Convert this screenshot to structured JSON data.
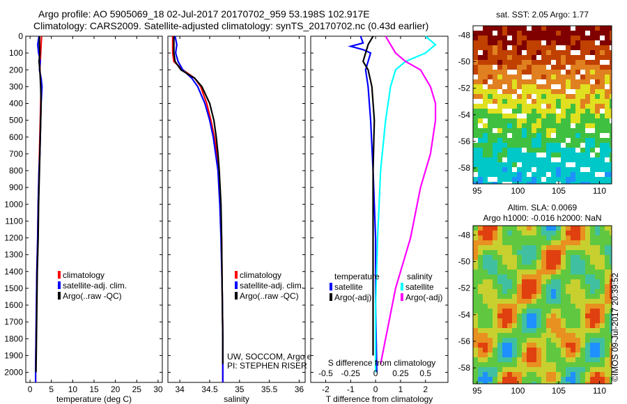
{
  "header": {
    "line1": "Argo profile: AO 5905069_18 02-Jul-2017 20170702_959 53.198S 102.917E",
    "line2": "Climatology: CARS2009. Satellite-adjusted climatology: synTS_20170702.nc (0.43d earlier)"
  },
  "colors": {
    "climatology": "#ff0000",
    "satellite": "#0000ff",
    "argo": "#000000",
    "salinity_satellite": "#00ffff",
    "salinity_argo": "#ff00ff"
  },
  "depth_axis": {
    "ticks": [
      "0",
      "100",
      "200",
      "300",
      "400",
      "500",
      "600",
      "700",
      "800",
      "900",
      "1000",
      "1100",
      "1200",
      "1300",
      "1400",
      "1500",
      "1600",
      "1700",
      "1800",
      "1900",
      "2000"
    ],
    "ylim": [
      0,
      2060
    ]
  },
  "chart_data": [
    {
      "type": "line",
      "panel": "temperature",
      "xlabel": "temperature (deg C)",
      "xlim": [
        -1,
        31
      ],
      "xticks": [
        "0",
        "5",
        "10",
        "15",
        "20",
        "25",
        "30"
      ],
      "xtick_values": [
        0,
        5,
        10,
        15,
        20,
        25,
        30
      ],
      "legend": [
        "climatology",
        "satellite-adj. clim.",
        "Argo(..raw -QC)"
      ],
      "series": [
        {
          "name": "climatology",
          "color": "#ff0000",
          "points": [
            [
              2.7,
              0
            ],
            [
              2.6,
              50
            ],
            [
              2.5,
              100
            ],
            [
              2.4,
              150
            ],
            [
              2.3,
              200
            ],
            [
              2.5,
              250
            ],
            [
              2.6,
              300
            ],
            [
              2.5,
              400
            ],
            [
              2.4,
              500
            ],
            [
              2.3,
              600
            ],
            [
              2.2,
              700
            ],
            [
              2.1,
              800
            ],
            [
              2.0,
              900
            ],
            [
              1.9,
              1000
            ],
            [
              1.8,
              1200
            ],
            [
              1.6,
              1400
            ],
            [
              1.5,
              1600
            ],
            [
              1.4,
              1800
            ],
            [
              1.3,
              2000
            ],
            [
              1.3,
              2060
            ]
          ]
        },
        {
          "name": "satellite-adj. clim.",
          "color": "#0000ff",
          "points": [
            [
              2.1,
              0
            ],
            [
              1.8,
              50
            ],
            [
              2.0,
              100
            ],
            [
              2.4,
              150
            ],
            [
              2.2,
              200
            ],
            [
              2.6,
              250
            ],
            [
              2.8,
              300
            ],
            [
              2.6,
              400
            ],
            [
              2.5,
              500
            ],
            [
              2.4,
              600
            ],
            [
              2.3,
              700
            ],
            [
              2.1,
              800
            ],
            [
              2.0,
              900
            ],
            [
              1.9,
              1000
            ],
            [
              1.8,
              1200
            ],
            [
              1.6,
              1400
            ],
            [
              1.5,
              1600
            ],
            [
              1.4,
              1800
            ],
            [
              1.3,
              2000
            ],
            [
              1.3,
              2060
            ]
          ]
        },
        {
          "name": "Argo(..raw -QC)",
          "color": "#000000",
          "points": [
            [
              2.2,
              0
            ],
            [
              2.2,
              50
            ],
            [
              2.3,
              100
            ],
            [
              2.1,
              150
            ],
            [
              2.3,
              200
            ],
            [
              2.4,
              250
            ],
            [
              2.5,
              300
            ],
            [
              2.6,
              400
            ],
            [
              2.5,
              500
            ],
            [
              2.4,
              600
            ],
            [
              2.3,
              700
            ],
            [
              2.2,
              800
            ],
            [
              2.1,
              900
            ],
            [
              2.0,
              1000
            ],
            [
              1.9,
              1200
            ],
            [
              1.7,
              1400
            ],
            [
              1.6,
              1600
            ],
            [
              1.5,
              1800
            ],
            [
              1.4,
              2000
            ]
          ]
        }
      ]
    },
    {
      "type": "line",
      "panel": "salinity",
      "xlabel": "salinity",
      "xlim": [
        33.8,
        36.1
      ],
      "xticks": [
        "34",
        "34.5",
        "35",
        "35.5",
        "36"
      ],
      "xtick_values": [
        34,
        34.5,
        35,
        35.5,
        36
      ],
      "legend": [
        "climatology",
        "satellite-adj. clim.",
        "Argo(..raw -QC)"
      ],
      "note": [
        "UW, SOCCOM, Argo equivalent",
        "PI: STEPHEN RISER"
      ],
      "series": [
        {
          "name": "climatology",
          "color": "#ff0000",
          "points": [
            [
              33.88,
              0
            ],
            [
              33.88,
              100
            ],
            [
              33.9,
              150
            ],
            [
              34.05,
              200
            ],
            [
              34.25,
              250
            ],
            [
              34.35,
              300
            ],
            [
              34.45,
              400
            ],
            [
              34.52,
              500
            ],
            [
              34.58,
              600
            ],
            [
              34.62,
              700
            ],
            [
              34.65,
              800
            ],
            [
              34.68,
              1000
            ],
            [
              34.7,
              1200
            ],
            [
              34.71,
              1500
            ],
            [
              34.72,
              1800
            ],
            [
              34.72,
              2000
            ],
            [
              34.72,
              2060
            ]
          ]
        },
        {
          "name": "satellite-adj. clim.",
          "color": "#0000ff",
          "points": [
            [
              33.92,
              0
            ],
            [
              33.95,
              50
            ],
            [
              33.93,
              100
            ],
            [
              33.97,
              150
            ],
            [
              34.05,
              200
            ],
            [
              34.2,
              250
            ],
            [
              34.3,
              300
            ],
            [
              34.42,
              400
            ],
            [
              34.5,
              500
            ],
            [
              34.56,
              600
            ],
            [
              34.6,
              700
            ],
            [
              34.64,
              800
            ],
            [
              34.67,
              1000
            ],
            [
              34.69,
              1200
            ],
            [
              34.71,
              1500
            ],
            [
              34.72,
              1800
            ],
            [
              34.72,
              2000
            ],
            [
              34.72,
              2060
            ]
          ]
        },
        {
          "name": "Argo(..raw -QC)",
          "color": "#000000",
          "points": [
            [
              33.9,
              0
            ],
            [
              33.9,
              100
            ],
            [
              33.92,
              150
            ],
            [
              34.02,
              200
            ],
            [
              34.25,
              250
            ],
            [
              34.37,
              300
            ],
            [
              34.5,
              400
            ],
            [
              34.57,
              500
            ],
            [
              34.61,
              600
            ],
            [
              34.64,
              700
            ],
            [
              34.66,
              800
            ],
            [
              34.69,
              1000
            ],
            [
              34.7,
              1200
            ],
            [
              34.71,
              1500
            ],
            [
              34.72,
              1800
            ],
            [
              34.72,
              1950
            ]
          ]
        }
      ]
    },
    {
      "type": "line",
      "panel": "difference",
      "xlabel": "T difference from climatology",
      "xlabel_top": "S difference from climatology",
      "xlim": [
        -2.6,
        2.9
      ],
      "xticks": [
        "-2",
        "-1",
        "0",
        "1",
        "2"
      ],
      "xtick_values": [
        -2,
        -1,
        0,
        1,
        2
      ],
      "s_ticks": [
        "-0.5",
        "-0.25",
        "0",
        "0.25",
        "0.5"
      ],
      "s_tick_values": [
        -0.5,
        -0.25,
        0,
        0.25,
        0.5
      ],
      "s_scale": 4,
      "legend_group_titles": [
        "temperature",
        "salinity"
      ],
      "legend_left": [
        "satellite",
        "Argo(-adj)"
      ],
      "legend_right": [
        "satellite",
        "Argo(-adj)"
      ],
      "series": [
        {
          "name": "temperature satellite",
          "color": "#0000ff",
          "points": [
            [
              -0.6,
              0
            ],
            [
              -0.5,
              40
            ],
            [
              -1.0,
              60
            ],
            [
              -0.5,
              80
            ],
            [
              -0.2,
              100
            ],
            [
              -0.3,
              150
            ],
            [
              -0.4,
              200
            ],
            [
              -0.3,
              300
            ],
            [
              -0.2,
              500
            ],
            [
              -0.1,
              800
            ],
            [
              0,
              1200
            ],
            [
              0,
              1600
            ],
            [
              0.05,
              2000
            ]
          ]
        },
        {
          "name": "temperature Argo(-adj)",
          "color": "#000000",
          "points": [
            [
              -0.1,
              0
            ],
            [
              -0.3,
              50
            ],
            [
              -0.4,
              100
            ],
            [
              -0.5,
              150
            ],
            [
              -0.3,
              200
            ],
            [
              -0.15,
              300
            ],
            [
              -0.05,
              500
            ],
            [
              -0.1,
              800
            ],
            [
              -0.1,
              1200
            ],
            [
              -0.1,
              1600
            ],
            [
              -0.1,
              1900
            ]
          ]
        },
        {
          "name": "salinity satellite",
          "color": "#00ffff",
          "points": [
            [
              0.5,
              0
            ],
            [
              0.6,
              50
            ],
            [
              0.5,
              100
            ],
            [
              0.3,
              150
            ],
            [
              0.2,
              200
            ],
            [
              0.15,
              300
            ],
            [
              0.1,
              500
            ],
            [
              0.05,
              800
            ],
            [
              0.02,
              1200
            ],
            [
              0,
              1600
            ],
            [
              0,
              2000
            ]
          ]
        },
        {
          "name": "salinity Argo(-adj)",
          "color": "#ff00ff",
          "points": [
            [
              0.1,
              0
            ],
            [
              0.15,
              50
            ],
            [
              0.2,
              100
            ],
            [
              0.3,
              150
            ],
            [
              0.45,
              200
            ],
            [
              0.55,
              300
            ],
            [
              0.6,
              400
            ],
            [
              0.6,
              500
            ],
            [
              0.55,
              700
            ],
            [
              0.45,
              900
            ],
            [
              0.35,
              1200
            ],
            [
              0.2,
              1500
            ],
            [
              0.1,
              1800
            ],
            [
              0.05,
              1950
            ]
          ]
        }
      ]
    },
    {
      "type": "heatmap",
      "panel": "sst_map",
      "title": "sat. SST: 2.05 Argo: 1.77",
      "xticks": [
        "95",
        "100",
        "105",
        "110"
      ],
      "yticks": [
        "-48",
        "-50",
        "-52",
        "-54",
        "-56",
        "-58"
      ],
      "xlim": [
        94.5,
        111.5
      ],
      "ylim": [
        -59.2,
        -47.3
      ]
    },
    {
      "type": "heatmap",
      "panel": "sla_map",
      "title": "Altim. SLA: 0.0069",
      "subtitle": "Argo h1000: -0.016 h2000: NaN",
      "xticks": [
        "95",
        "100",
        "105",
        "110"
      ],
      "yticks": [
        "-48",
        "-50",
        "-52",
        "-54",
        "-56",
        "-58"
      ],
      "xlim": [
        94.5,
        111.5
      ],
      "ylim": [
        -59.2,
        -47.3
      ]
    }
  ],
  "copyright": "©IMOS 09-Jul-2017 20:39:52"
}
